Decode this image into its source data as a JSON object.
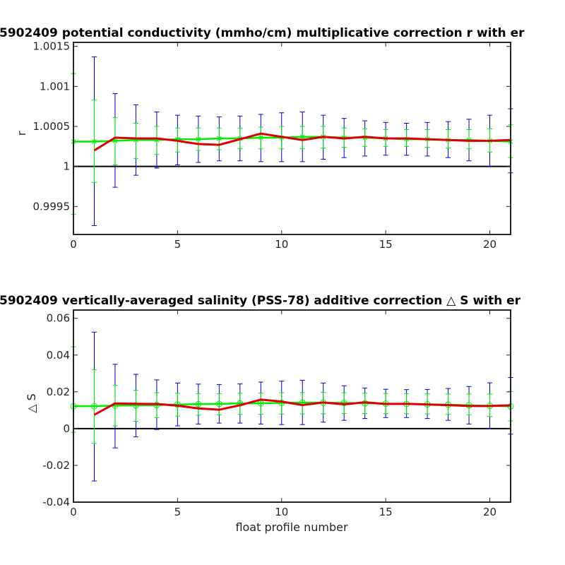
{
  "chart_data": [
    {
      "type": "line",
      "title": "5902409 potential conductivity (mmho/cm) multiplicative correction r with er",
      "xlabel": "",
      "ylabel": "r",
      "xlim": [
        0,
        21
      ],
      "ylim": [
        0.99915,
        1.00155
      ],
      "xticks": [
        0,
        5,
        10,
        15,
        20
      ],
      "xtick_labels": [
        "0",
        "5",
        "10",
        "15",
        "20"
      ],
      "yticks": [
        0.9995,
        1.0,
        1.0005,
        1.001,
        1.0015
      ],
      "ytick_labels": [
        "0.9995",
        "1",
        "1.0005",
        "1.001",
        "1.0015"
      ],
      "reference_line": 1.0,
      "x": [
        0,
        1,
        2,
        3,
        4,
        5,
        6,
        7,
        8,
        9,
        10,
        11,
        12,
        13,
        14,
        15,
        16,
        17,
        18,
        19,
        20,
        21
      ],
      "series": [
        {
          "color": "#0000cc",
          "kind": "errorbar",
          "center": [
            null,
            1.00022,
            1.00032,
            1.00033,
            1.00033,
            1.00033,
            1.00034,
            1.00034,
            1.00035,
            1.00036,
            1.00037,
            1.00037,
            1.00037,
            1.00036,
            1.00035,
            1.00035,
            1.00034,
            1.00034,
            1.00033,
            1.00033,
            1.00032,
            1.00032
          ],
          "lower": [
            null,
            0.99926,
            0.99974,
            0.99989,
            0.99998,
            1.00002,
            1.00005,
            1.00007,
            1.00007,
            1.00006,
            1.00006,
            1.00006,
            1.00009,
            1.00011,
            1.00013,
            1.00014,
            1.00014,
            1.00013,
            1.00011,
            1.00007,
            1.0,
            0.99992
          ],
          "upper": [
            null,
            1.00137,
            1.00091,
            1.00077,
            1.00068,
            1.00064,
            1.00063,
            1.00062,
            1.00063,
            1.00065,
            1.00067,
            1.00068,
            1.00064,
            1.0006,
            1.00057,
            1.00055,
            1.00054,
            1.00055,
            1.00056,
            1.00059,
            1.00064,
            1.00072
          ]
        },
        {
          "color": "#00ee00",
          "kind": "errorbar-line",
          "marker": "x",
          "center": [
            1.00031,
            1.00031,
            1.00032,
            1.00033,
            1.00033,
            1.00034,
            1.00034,
            1.00035,
            1.00035,
            1.00036,
            1.00036,
            1.00037,
            1.00037,
            1.00036,
            1.00036,
            1.00035,
            1.00034,
            1.00034,
            1.00033,
            1.00033,
            1.00032,
            1.00031
          ],
          "lower": [
            0.9994,
            0.9998,
            1.00002,
            1.0001,
            1.00015,
            1.00018,
            1.0002,
            1.00021,
            1.00022,
            1.00022,
            1.00022,
            1.00022,
            1.00023,
            1.00024,
            1.00025,
            1.00025,
            1.00025,
            1.00024,
            1.00023,
            1.00022,
            1.00018,
            1.00011
          ],
          "upper": [
            1.00116,
            1.00083,
            1.00061,
            1.00054,
            1.0005,
            1.00048,
            1.00048,
            1.00048,
            1.00048,
            1.00049,
            1.0005,
            1.0005,
            1.0005,
            1.00048,
            1.00047,
            1.00046,
            1.00046,
            1.00046,
            1.00046,
            1.00046,
            1.00047,
            1.00052
          ]
        },
        {
          "color": "#dd0000",
          "kind": "line",
          "values": [
            null,
            1.0002,
            1.00036,
            1.00035,
            1.00035,
            1.00032,
            1.00028,
            1.00027,
            1.00034,
            1.00041,
            1.00037,
            1.00033,
            1.00037,
            1.00035,
            1.00037,
            1.00035,
            1.00035,
            1.00034,
            1.00033,
            1.00032,
            1.00032,
            1.00033
          ]
        }
      ]
    },
    {
      "type": "line",
      "title": "5902409 vertically-averaged salinity (PSS-78) additive correction △ S with er",
      "xlabel": "float profile number",
      "ylabel": "△ S",
      "xlim": [
        0,
        21
      ],
      "ylim": [
        -0.04,
        0.0645
      ],
      "xticks": [
        0,
        5,
        10,
        15,
        20
      ],
      "xtick_labels": [
        "0",
        "5",
        "10",
        "15",
        "20"
      ],
      "yticks": [
        -0.04,
        -0.02,
        0,
        0.02,
        0.04,
        0.06
      ],
      "ytick_labels": [
        "-0.04",
        "-0.02",
        "0",
        "0.02",
        "0.04",
        "0.06"
      ],
      "reference_line": 0,
      "x": [
        0,
        1,
        2,
        3,
        4,
        5,
        6,
        7,
        8,
        9,
        10,
        11,
        12,
        13,
        14,
        15,
        16,
        17,
        18,
        19,
        20,
        21
      ],
      "series": [
        {
          "color": "#0000cc",
          "kind": "errorbar",
          "center": [
            null,
            0.012,
            0.0125,
            0.013,
            0.013,
            0.013,
            0.0133,
            0.0135,
            0.0137,
            0.0138,
            0.014,
            0.014,
            0.014,
            0.0139,
            0.0137,
            0.0135,
            0.0133,
            0.0131,
            0.0129,
            0.0127,
            0.0125,
            0.0123
          ],
          "lower": [
            null,
            -0.0285,
            -0.0105,
            -0.0045,
            -0.0005,
            0.0015,
            0.0025,
            0.003,
            0.003,
            0.0025,
            0.0022,
            0.0022,
            0.0035,
            0.0045,
            0.0055,
            0.006,
            0.006,
            0.0055,
            0.0045,
            0.0025,
            0.0,
            -0.003
          ],
          "upper": [
            null,
            0.0525,
            0.035,
            0.0295,
            0.0265,
            0.0248,
            0.0242,
            0.024,
            0.0243,
            0.0253,
            0.0258,
            0.0263,
            0.0248,
            0.0233,
            0.0221,
            0.0214,
            0.0212,
            0.0213,
            0.0218,
            0.0229,
            0.0249,
            0.0278
          ]
        },
        {
          "color": "#00ee00",
          "kind": "errorbar-line",
          "marker": "o",
          "center": [
            0.0122,
            0.0122,
            0.0125,
            0.0127,
            0.0128,
            0.0131,
            0.0133,
            0.0135,
            0.0137,
            0.0138,
            0.014,
            0.0141,
            0.0141,
            0.014,
            0.0138,
            0.0136,
            0.0134,
            0.0132,
            0.013,
            0.0127,
            0.0124,
            0.0121
          ],
          "lower": [
            -0.002,
            -0.008,
            0.0015,
            0.004,
            0.006,
            0.0068,
            0.0073,
            0.0075,
            0.0077,
            0.0078,
            0.0079,
            0.008,
            0.0081,
            0.0082,
            0.0082,
            0.0082,
            0.0081,
            0.008,
            0.0078,
            0.0074,
            0.0066,
            0.0042
          ],
          "upper": [
            0.0445,
            0.032,
            0.0235,
            0.0208,
            0.0195,
            0.0192,
            0.019,
            0.019,
            0.0192,
            0.0193,
            0.0195,
            0.0196,
            0.0197,
            0.0195,
            0.0193,
            0.0191,
            0.019,
            0.0189,
            0.0188,
            0.0188,
            0.0188,
            0.0202
          ]
        },
        {
          "color": "#dd0000",
          "kind": "line",
          "values": [
            null,
            0.0075,
            0.0137,
            0.0135,
            0.0134,
            0.0125,
            0.011,
            0.0103,
            0.0127,
            0.0158,
            0.0147,
            0.0128,
            0.0142,
            0.0132,
            0.0143,
            0.0134,
            0.0135,
            0.0131,
            0.0128,
            0.0123,
            0.0123,
            0.0127
          ]
        }
      ]
    }
  ]
}
